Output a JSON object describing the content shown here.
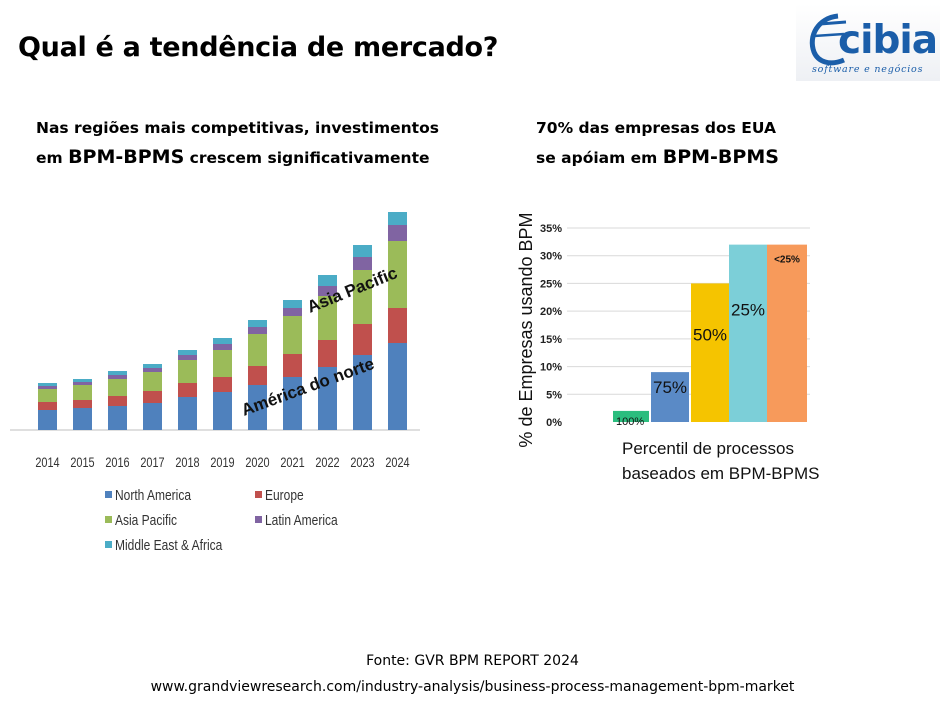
{
  "title": "Qual é a tendência de mercado?",
  "logo": {
    "name": "cibia",
    "tagline": "software e negócios"
  },
  "left_heading": {
    "line1": "Nas regiões mais competitivas, investimentos",
    "line2_pre": "em ",
    "line2_big": "BPM-BPMS",
    "line2_post": " crescem significativamente"
  },
  "right_heading": {
    "line1": "70% das empresas dos EUA",
    "line2_pre": "se apóiam em ",
    "line2_big": "BPM-BPMS"
  },
  "source": {
    "line1": "Fonte:  GVR BPM REPORT 2024",
    "line2": "www.grandviewresearch.com/industry-analysis/business-process-management-bpm-market"
  },
  "chart_data": [
    {
      "type": "bar",
      "stacked": true,
      "categories": [
        "2014",
        "2015",
        "2016",
        "2017",
        "2018",
        "2019",
        "2020",
        "2021",
        "2022",
        "2023",
        "2024"
      ],
      "series": [
        {
          "name": "North America",
          "color": "#4f81bd",
          "values": [
            20,
            22,
            24,
            27,
            33,
            38,
            45,
            53,
            63,
            75,
            87
          ]
        },
        {
          "name": "Europe",
          "color": "#c0504d",
          "values": [
            8,
            8,
            10,
            12,
            14,
            15,
            19,
            23,
            27,
            31,
            35
          ]
        },
        {
          "name": "Asia Pacific",
          "color": "#9bbb59",
          "values": [
            13,
            15,
            17,
            19,
            23,
            27,
            32,
            38,
            44,
            54,
            67
          ]
        },
        {
          "name": "Latin America",
          "color": "#8064a2",
          "values": [
            3,
            3,
            4,
            4,
            5,
            6,
            7,
            8,
            10,
            13,
            16
          ]
        },
        {
          "name": "Middle East & Africa",
          "color": "#4bacc6",
          "values": [
            3,
            3,
            4,
            4,
            5,
            6,
            7,
            8,
            11,
            12,
            13
          ]
        }
      ],
      "annotations": [
        "Asia Pacific",
        "América do norte"
      ],
      "legend": "bottom",
      "grid": false
    },
    {
      "type": "bar",
      "categories": [
        "100%",
        "75%",
        "50%",
        "25%",
        "<25%"
      ],
      "values": [
        2,
        9,
        25,
        32,
        32
      ],
      "colors": [
        "#2bbd7e",
        "#5a8ac6",
        "#f5c400",
        "#7ccfd8",
        "#f79a5b"
      ],
      "yticks": [
        "35%",
        "30%",
        "25%",
        "20%",
        "15%",
        "10%",
        "5%",
        "0%"
      ],
      "ylim": [
        0,
        35
      ],
      "ylabel": "% de Empresas usando BPM",
      "xlabel_line1": "Percentil de processos",
      "xlabel_line2": "baseados  em BPM-BPMS",
      "grid": true
    }
  ]
}
